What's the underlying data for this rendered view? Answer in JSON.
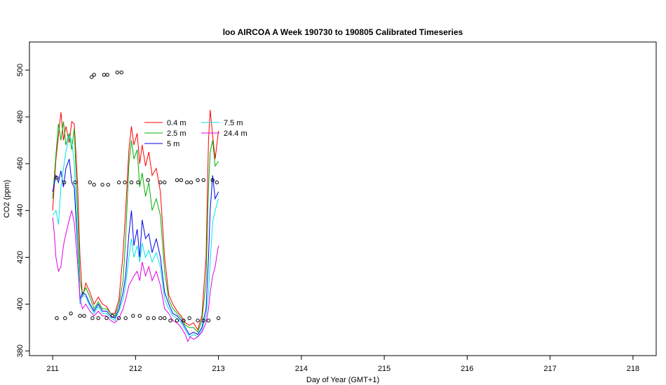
{
  "chart_data": {
    "type": "line",
    "title": "loo AIRCOA A  Week 190730 to 190805  Calibrated Timeseries",
    "xlabel": "Day of Year (GMT+1)",
    "ylabel": "CO2 (ppm)",
    "xlim": [
      210.72,
      218.28
    ],
    "ylim": [
      378,
      512
    ],
    "x_ticks": [
      "211",
      "212",
      "213",
      "214",
      "215",
      "216",
      "217",
      "218"
    ],
    "y_ticks": [
      "380",
      "400",
      "420",
      "440",
      "460",
      "480",
      "500"
    ],
    "grid": false,
    "legend_position": "upper-left-inside",
    "series": [
      {
        "name": "0.4 m",
        "color": "#ff0000",
        "points": [
          [
            211.0,
            440
          ],
          [
            211.04,
            462
          ],
          [
            211.07,
            472
          ],
          [
            211.1,
            482
          ],
          [
            211.13,
            470
          ],
          [
            211.16,
            476
          ],
          [
            211.2,
            469
          ],
          [
            211.23,
            478
          ],
          [
            211.26,
            477
          ],
          [
            211.3,
            452
          ],
          [
            211.33,
            420
          ],
          [
            211.36,
            403
          ],
          [
            211.4,
            409
          ],
          [
            211.45,
            405
          ],
          [
            211.5,
            400
          ],
          [
            211.55,
            403
          ],
          [
            211.6,
            400
          ],
          [
            211.65,
            399
          ],
          [
            211.7,
            396
          ],
          [
            211.75,
            396
          ],
          [
            211.8,
            402
          ],
          [
            211.85,
            422
          ],
          [
            211.88,
            440
          ],
          [
            211.92,
            466
          ],
          [
            211.95,
            476
          ],
          [
            211.98,
            468
          ],
          [
            212.02,
            473
          ],
          [
            212.05,
            460
          ],
          [
            212.08,
            468
          ],
          [
            212.12,
            459
          ],
          [
            212.16,
            465
          ],
          [
            212.2,
            455
          ],
          [
            212.25,
            458
          ],
          [
            212.3,
            448
          ],
          [
            212.35,
            420
          ],
          [
            212.4,
            404
          ],
          [
            212.45,
            400
          ],
          [
            212.5,
            397
          ],
          [
            212.55,
            395
          ],
          [
            212.6,
            392
          ],
          [
            212.65,
            391
          ],
          [
            212.7,
            392
          ],
          [
            212.75,
            389
          ],
          [
            212.8,
            395
          ],
          [
            212.85,
            420
          ],
          [
            212.88,
            470
          ],
          [
            212.9,
            483
          ],
          [
            212.93,
            472
          ],
          [
            212.96,
            462
          ],
          [
            213.0,
            474
          ]
        ]
      },
      {
        "name": "2.5 m",
        "color": "#00b000",
        "points": [
          [
            211.0,
            445
          ],
          [
            211.04,
            464
          ],
          [
            211.07,
            477
          ],
          [
            211.1,
            470
          ],
          [
            211.13,
            478
          ],
          [
            211.16,
            468
          ],
          [
            211.2,
            473
          ],
          [
            211.23,
            466
          ],
          [
            211.26,
            475
          ],
          [
            211.3,
            440
          ],
          [
            211.33,
            410
          ],
          [
            211.36,
            404
          ],
          [
            211.4,
            407
          ],
          [
            211.45,
            403
          ],
          [
            211.5,
            398
          ],
          [
            211.55,
            401
          ],
          [
            211.6,
            398
          ],
          [
            211.65,
            398
          ],
          [
            211.7,
            396
          ],
          [
            211.75,
            395
          ],
          [
            211.8,
            400
          ],
          [
            211.85,
            410
          ],
          [
            211.88,
            428
          ],
          [
            211.92,
            460
          ],
          [
            211.95,
            470
          ],
          [
            211.98,
            462
          ],
          [
            212.02,
            466
          ],
          [
            212.05,
            450
          ],
          [
            212.08,
            456
          ],
          [
            212.12,
            446
          ],
          [
            212.16,
            452
          ],
          [
            212.2,
            440
          ],
          [
            212.25,
            445
          ],
          [
            212.3,
            438
          ],
          [
            212.35,
            414
          ],
          [
            212.4,
            402
          ],
          [
            212.45,
            398
          ],
          [
            212.5,
            396
          ],
          [
            212.55,
            394
          ],
          [
            212.6,
            391
          ],
          [
            212.65,
            390
          ],
          [
            212.7,
            390
          ],
          [
            212.75,
            388
          ],
          [
            212.8,
            393
          ],
          [
            212.85,
            410
          ],
          [
            212.88,
            450
          ],
          [
            212.9,
            465
          ],
          [
            212.93,
            470
          ],
          [
            212.96,
            459
          ],
          [
            213.0,
            461
          ]
        ]
      },
      {
        "name": "5 m",
        "color": "#0000ee",
        "points": [
          [
            211.0,
            448
          ],
          [
            211.04,
            455
          ],
          [
            211.07,
            452
          ],
          [
            211.1,
            457
          ],
          [
            211.13,
            450
          ],
          [
            211.16,
            458
          ],
          [
            211.2,
            462
          ],
          [
            211.23,
            452
          ],
          [
            211.26,
            450
          ],
          [
            211.3,
            425
          ],
          [
            211.33,
            402
          ],
          [
            211.36,
            405
          ],
          [
            211.4,
            404
          ],
          [
            211.45,
            400
          ],
          [
            211.5,
            397
          ],
          [
            211.55,
            400
          ],
          [
            211.6,
            397
          ],
          [
            211.65,
            397
          ],
          [
            211.7,
            395
          ],
          [
            211.75,
            394
          ],
          [
            211.8,
            398
          ],
          [
            211.85,
            405
          ],
          [
            211.88,
            412
          ],
          [
            211.92,
            430
          ],
          [
            211.95,
            440
          ],
          [
            211.98,
            425
          ],
          [
            212.02,
            432
          ],
          [
            212.05,
            420
          ],
          [
            212.08,
            436
          ],
          [
            212.12,
            428
          ],
          [
            212.16,
            430
          ],
          [
            212.2,
            422
          ],
          [
            212.25,
            428
          ],
          [
            212.3,
            420
          ],
          [
            212.35,
            405
          ],
          [
            212.4,
            400
          ],
          [
            212.45,
            396
          ],
          [
            212.5,
            395
          ],
          [
            212.55,
            393
          ],
          [
            212.6,
            390
          ],
          [
            212.65,
            387
          ],
          [
            212.7,
            388
          ],
          [
            212.75,
            387
          ],
          [
            212.8,
            390
          ],
          [
            212.85,
            398
          ],
          [
            212.88,
            420
          ],
          [
            212.9,
            440
          ],
          [
            212.93,
            455
          ],
          [
            212.96,
            445
          ],
          [
            213.0,
            448
          ]
        ]
      },
      {
        "name": "7.5 m",
        "color": "#00e5e5",
        "points": [
          [
            211.0,
            438
          ],
          [
            211.04,
            440
          ],
          [
            211.07,
            434
          ],
          [
            211.1,
            450
          ],
          [
            211.13,
            458
          ],
          [
            211.16,
            465
          ],
          [
            211.2,
            472
          ],
          [
            211.23,
            470
          ],
          [
            211.26,
            460
          ],
          [
            211.3,
            428
          ],
          [
            211.33,
            400
          ],
          [
            211.36,
            404
          ],
          [
            211.4,
            403
          ],
          [
            211.45,
            399
          ],
          [
            211.5,
            396
          ],
          [
            211.55,
            399
          ],
          [
            211.6,
            396
          ],
          [
            211.65,
            396
          ],
          [
            211.7,
            394
          ],
          [
            211.75,
            393
          ],
          [
            211.8,
            397
          ],
          [
            211.85,
            402
          ],
          [
            211.88,
            408
          ],
          [
            211.92,
            420
          ],
          [
            211.95,
            428
          ],
          [
            211.98,
            420
          ],
          [
            212.02,
            425
          ],
          [
            212.05,
            418
          ],
          [
            212.08,
            426
          ],
          [
            212.12,
            420
          ],
          [
            212.16,
            423
          ],
          [
            212.2,
            418
          ],
          [
            212.25,
            422
          ],
          [
            212.3,
            416
          ],
          [
            212.35,
            402
          ],
          [
            212.4,
            398
          ],
          [
            212.45,
            395
          ],
          [
            212.5,
            394
          ],
          [
            212.55,
            392
          ],
          [
            212.6,
            389
          ],
          [
            212.65,
            386
          ],
          [
            212.7,
            387
          ],
          [
            212.75,
            386
          ],
          [
            212.8,
            389
          ],
          [
            212.85,
            395
          ],
          [
            212.88,
            405
          ],
          [
            212.9,
            418
          ],
          [
            212.93,
            435
          ],
          [
            212.96,
            440
          ],
          [
            213.0,
            445
          ]
        ]
      },
      {
        "name": "24.4 m",
        "color": "#e000e0",
        "points": [
          [
            211.0,
            437
          ],
          [
            211.02,
            430
          ],
          [
            211.04,
            420
          ],
          [
            211.07,
            414
          ],
          [
            211.1,
            416
          ],
          [
            211.13,
            425
          ],
          [
            211.16,
            430
          ],
          [
            211.2,
            436
          ],
          [
            211.23,
            440
          ],
          [
            211.26,
            435
          ],
          [
            211.3,
            418
          ],
          [
            211.33,
            402
          ],
          [
            211.36,
            398
          ],
          [
            211.4,
            400
          ],
          [
            211.45,
            397
          ],
          [
            211.5,
            395
          ],
          [
            211.55,
            397
          ],
          [
            211.6,
            395
          ],
          [
            211.65,
            395
          ],
          [
            211.7,
            393
          ],
          [
            211.75,
            392
          ],
          [
            211.8,
            394
          ],
          [
            211.85,
            398
          ],
          [
            211.88,
            402
          ],
          [
            211.92,
            408
          ],
          [
            211.95,
            410
          ],
          [
            211.98,
            412
          ],
          [
            212.02,
            414
          ],
          [
            212.05,
            410
          ],
          [
            212.08,
            418
          ],
          [
            212.12,
            412
          ],
          [
            212.16,
            416
          ],
          [
            212.2,
            410
          ],
          [
            212.25,
            414
          ],
          [
            212.3,
            408
          ],
          [
            212.35,
            398
          ],
          [
            212.4,
            396
          ],
          [
            212.45,
            393
          ],
          [
            212.5,
            392
          ],
          [
            212.55,
            390
          ],
          [
            212.6,
            387
          ],
          [
            212.63,
            384
          ],
          [
            212.66,
            386
          ],
          [
            212.7,
            385
          ],
          [
            212.75,
            386
          ],
          [
            212.8,
            388
          ],
          [
            212.85,
            392
          ],
          [
            212.88,
            398
          ],
          [
            212.9,
            405
          ],
          [
            212.93,
            412
          ],
          [
            212.96,
            416
          ],
          [
            213.0,
            425
          ]
        ]
      }
    ],
    "scatter": {
      "name": "open circles",
      "color": "#000000",
      "points": [
        [
          211.05,
          394
        ],
        [
          211.15,
          394
        ],
        [
          211.22,
          396
        ],
        [
          211.33,
          395
        ],
        [
          211.38,
          395
        ],
        [
          211.48,
          394
        ],
        [
          211.55,
          394
        ],
        [
          211.65,
          394
        ],
        [
          211.72,
          395
        ],
        [
          211.8,
          394
        ],
        [
          211.88,
          394
        ],
        [
          211.97,
          395
        ],
        [
          212.05,
          395
        ],
        [
          212.15,
          394
        ],
        [
          212.22,
          394
        ],
        [
          212.3,
          394
        ],
        [
          212.35,
          394
        ],
        [
          212.42,
          393
        ],
        [
          212.5,
          393
        ],
        [
          212.58,
          393
        ],
        [
          212.65,
          394
        ],
        [
          212.75,
          393
        ],
        [
          212.82,
          393
        ],
        [
          212.88,
          393
        ],
        [
          213.0,
          394
        ],
        [
          211.05,
          454
        ],
        [
          211.14,
          452
        ],
        [
          211.27,
          452
        ],
        [
          211.45,
          452
        ],
        [
          211.5,
          451
        ],
        [
          211.6,
          451
        ],
        [
          211.67,
          451
        ],
        [
          211.8,
          452
        ],
        [
          211.87,
          452
        ],
        [
          211.95,
          452
        ],
        [
          212.03,
          452
        ],
        [
          212.15,
          453
        ],
        [
          212.3,
          452
        ],
        [
          212.35,
          452
        ],
        [
          212.5,
          453
        ],
        [
          212.55,
          453
        ],
        [
          212.62,
          452
        ],
        [
          212.67,
          452
        ],
        [
          212.75,
          453
        ],
        [
          212.82,
          453
        ],
        [
          212.93,
          453
        ],
        [
          212.98,
          452
        ],
        [
          211.47,
          497
        ],
        [
          211.5,
          498
        ],
        [
          211.62,
          498
        ],
        [
          211.66,
          498
        ],
        [
          211.78,
          499
        ],
        [
          211.83,
          499
        ]
      ]
    }
  }
}
